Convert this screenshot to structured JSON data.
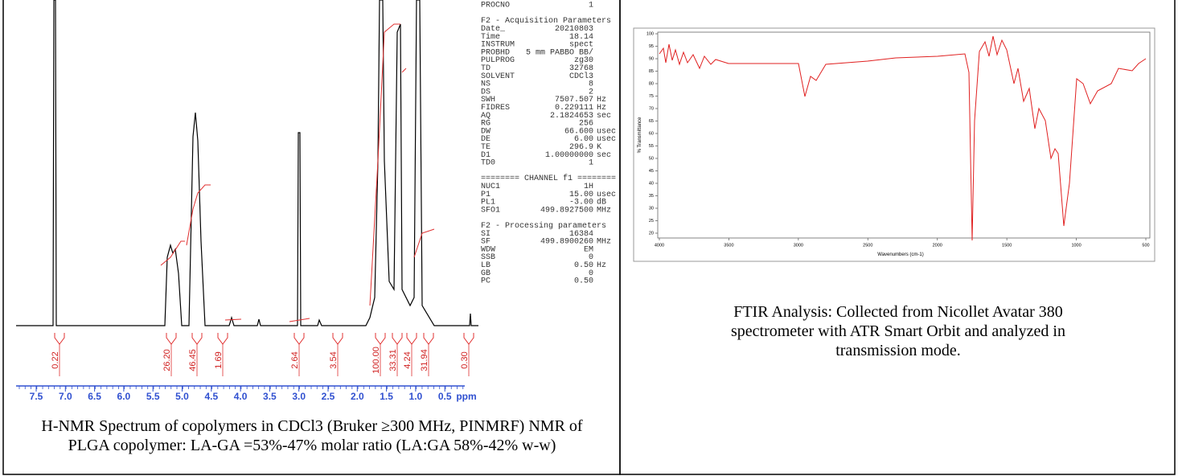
{
  "nmr": {
    "procno": {
      "name": "PROCNO",
      "value": "1"
    },
    "sections": [
      {
        "title": "F2 - Acquisition Parameters",
        "rows": [
          {
            "name": "Date_",
            "value": "20210803"
          },
          {
            "name": "Time",
            "value": "18.14"
          },
          {
            "name": "INSTRUM",
            "value": "spect"
          },
          {
            "name": "PROBHD",
            "value": "5 mm PABBO BB/"
          },
          {
            "name": "PULPROG",
            "value": "zg30"
          },
          {
            "name": "TD",
            "value": "32768"
          },
          {
            "name": "SOLVENT",
            "value": "CDCl3"
          },
          {
            "name": "NS",
            "value": "8"
          },
          {
            "name": "DS",
            "value": "2"
          },
          {
            "name": "SWH",
            "value": "7507.507",
            "unit": "Hz"
          },
          {
            "name": "FIDRES",
            "value": "0.229111",
            "unit": "Hz"
          },
          {
            "name": "AQ",
            "value": "2.1824653",
            "unit": "sec"
          },
          {
            "name": "RG",
            "value": "256"
          },
          {
            "name": "DW",
            "value": "66.600",
            "unit": "usec"
          },
          {
            "name": "DE",
            "value": "6.00",
            "unit": "usec"
          },
          {
            "name": "TE",
            "value": "296.9",
            "unit": "K"
          },
          {
            "name": "D1",
            "value": "1.00000000",
            "unit": "sec"
          },
          {
            "name": "TD0",
            "value": "1"
          }
        ]
      },
      {
        "title": "======== CHANNEL f1 ========",
        "rows": [
          {
            "name": "NUC1",
            "value": "1H"
          },
          {
            "name": "P1",
            "value": "15.00",
            "unit": "usec"
          },
          {
            "name": "PL1",
            "value": "-3.00",
            "unit": "dB"
          },
          {
            "name": "SFO1",
            "value": "499.8927500",
            "unit": "MHz"
          }
        ]
      },
      {
        "title": "F2 - Processing parameters",
        "rows": [
          {
            "name": "SI",
            "value": "16384"
          },
          {
            "name": "SF",
            "value": "499.8900260",
            "unit": "MHz"
          },
          {
            "name": "WDW",
            "value": "EM"
          },
          {
            "name": "SSB",
            "value": "0"
          },
          {
            "name": "LB",
            "value": "0.50",
            "unit": "Hz"
          },
          {
            "name": "GB",
            "value": "0"
          },
          {
            "name": "PC",
            "value": "0.50"
          }
        ]
      }
    ],
    "integrals": [
      "0.22",
      "26.20",
      "46.45",
      "1.69",
      "2.64",
      "3.54",
      "100.00",
      "33.31",
      "4.24",
      "31.94",
      "0.30"
    ],
    "ppm_ticks": [
      "7.5",
      "7.0",
      "6.5",
      "6.0",
      "5.5",
      "5.0",
      "4.5",
      "4.0",
      "3.5",
      "3.0",
      "2.5",
      "2.0",
      "1.5",
      "1.0",
      "0.5"
    ],
    "ppm_unit": "ppm",
    "caption": "H-NMR Spectrum of copolymers in CDCl3 (Bruker ≥300 MHz, PINMRF) NMR of PLGA copolymer: LA-GA =53%-47% molar ratio (LA:GA 58%-42% w-w)"
  },
  "ftir": {
    "y_label": "% Transmittance",
    "x_label": "Wavenumbers (cm-1)",
    "yticks": [
      "100",
      "95",
      "90",
      "85",
      "80",
      "75",
      "70",
      "65",
      "60",
      "55",
      "50",
      "45",
      "40",
      "35",
      "30",
      "25",
      "20"
    ],
    "xticks": [
      "4000",
      "3500",
      "3000",
      "2500",
      "2000",
      "1500",
      "1000",
      "500"
    ],
    "caption": "FTIR Analysis: Collected from Nicollet Avatar 380 spectrometer with ATR Smart Orbit and analyzed in transmission mode."
  }
}
